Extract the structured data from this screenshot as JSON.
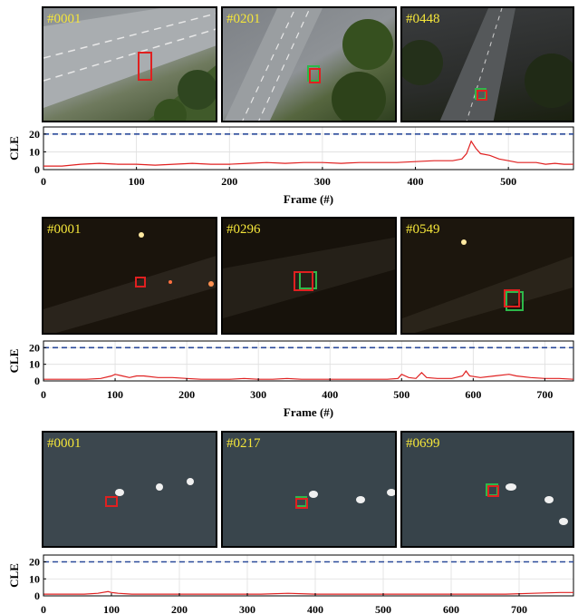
{
  "colors": {
    "cle_line": "#e02020",
    "threshold_line": "#2a4a9a",
    "box_tracker": "#e02020",
    "box_groundtruth": "#2db84a",
    "frame_label": "#f5e63a"
  },
  "panels": [
    {
      "frames": [
        {
          "label": "#0001",
          "scene": "highway-day"
        },
        {
          "label": "#0201",
          "scene": "highway-day"
        },
        {
          "label": "#0448",
          "scene": "highway-dusk"
        }
      ]
    },
    {
      "frames": [
        {
          "label": "#0001",
          "scene": "road-night"
        },
        {
          "label": "#0296",
          "scene": "road-night"
        },
        {
          "label": "#0549",
          "scene": "road-night"
        }
      ]
    },
    {
      "frames": [
        {
          "label": "#0001",
          "scene": "lake-swans"
        },
        {
          "label": "#0217",
          "scene": "lake-swans"
        },
        {
          "label": "#0699",
          "scene": "lake-swans"
        }
      ]
    }
  ],
  "chart_data": [
    {
      "type": "line",
      "xlabel": "Frame (#)",
      "ylabel": "CLE",
      "xlim": [
        0,
        570
      ],
      "ylim": [
        0,
        24
      ],
      "xticks": [
        "0",
        "100",
        "200",
        "300",
        "400",
        "500"
      ],
      "yticks": [
        "0",
        "10",
        "20"
      ],
      "threshold": 20,
      "grid": true,
      "series": [
        {
          "x": [
            0,
            20,
            40,
            60,
            80,
            100,
            120,
            140,
            160,
            180,
            200,
            220,
            240,
            260,
            280,
            300,
            320,
            340,
            360,
            380,
            400,
            420,
            440,
            450,
            455,
            460,
            465,
            470,
            480,
            490,
            500,
            510,
            520,
            530,
            540,
            550,
            560,
            570
          ],
          "values": [
            2,
            2,
            3,
            3.5,
            3,
            3,
            2.5,
            3,
            3.5,
            3,
            3,
            3.5,
            4,
            3.5,
            4,
            4,
            3.5,
            4,
            4,
            4,
            4.5,
            5,
            5,
            6,
            9,
            16,
            12,
            9,
            8,
            6,
            5,
            4,
            4,
            4,
            3,
            3.5,
            3,
            3
          ]
        }
      ]
    },
    {
      "type": "line",
      "xlabel": "Frame (#)",
      "ylabel": "CLE",
      "xlim": [
        0,
        740
      ],
      "ylim": [
        0,
        24
      ],
      "xticks": [
        "0",
        "100",
        "200",
        "300",
        "400",
        "500",
        "600",
        "700"
      ],
      "yticks": [
        "0",
        "10",
        "20"
      ],
      "threshold": 20,
      "grid": true,
      "series": [
        {
          "x": [
            0,
            20,
            40,
            60,
            80,
            95,
            100,
            110,
            120,
            130,
            140,
            160,
            180,
            200,
            220,
            240,
            260,
            280,
            300,
            320,
            340,
            360,
            380,
            400,
            420,
            440,
            460,
            480,
            495,
            500,
            510,
            520,
            528,
            535,
            550,
            570,
            585,
            590,
            595,
            610,
            630,
            650,
            660,
            680,
            700,
            720,
            740
          ],
          "values": [
            1,
            1,
            1,
            1,
            1.5,
            3,
            4,
            3,
            2,
            3,
            3,
            2,
            2,
            1.5,
            1,
            1,
            1,
            1.5,
            1,
            1,
            1.5,
            1,
            1,
            1,
            1,
            1,
            1,
            1,
            1.5,
            4,
            2,
            1.5,
            5,
            2,
            1.5,
            1.5,
            3,
            6,
            3,
            2,
            3,
            4,
            3,
            2,
            1.5,
            1.5,
            1
          ]
        }
      ]
    },
    {
      "type": "line",
      "xlabel": "",
      "ylabel": "CLE",
      "xlim": [
        0,
        780
      ],
      "ylim": [
        0,
        24
      ],
      "xticks": [
        "0",
        "100",
        "200",
        "300",
        "400",
        "500",
        "600",
        "700"
      ],
      "yticks": [
        "0",
        "10",
        "20"
      ],
      "threshold": 20,
      "grid": true,
      "series": [
        {
          "x": [
            0,
            20,
            40,
            60,
            80,
            95,
            100,
            110,
            130,
            160,
            200,
            240,
            280,
            320,
            360,
            400,
            440,
            480,
            520,
            560,
            600,
            640,
            680,
            720,
            760,
            780
          ],
          "values": [
            1,
            1,
            1,
            1,
            1.5,
            2.5,
            2,
            1.5,
            1,
            1,
            1,
            1,
            1,
            1,
            1.5,
            1,
            1,
            1,
            1,
            1,
            1,
            1,
            1,
            1.5,
            2,
            2
          ]
        }
      ]
    }
  ]
}
